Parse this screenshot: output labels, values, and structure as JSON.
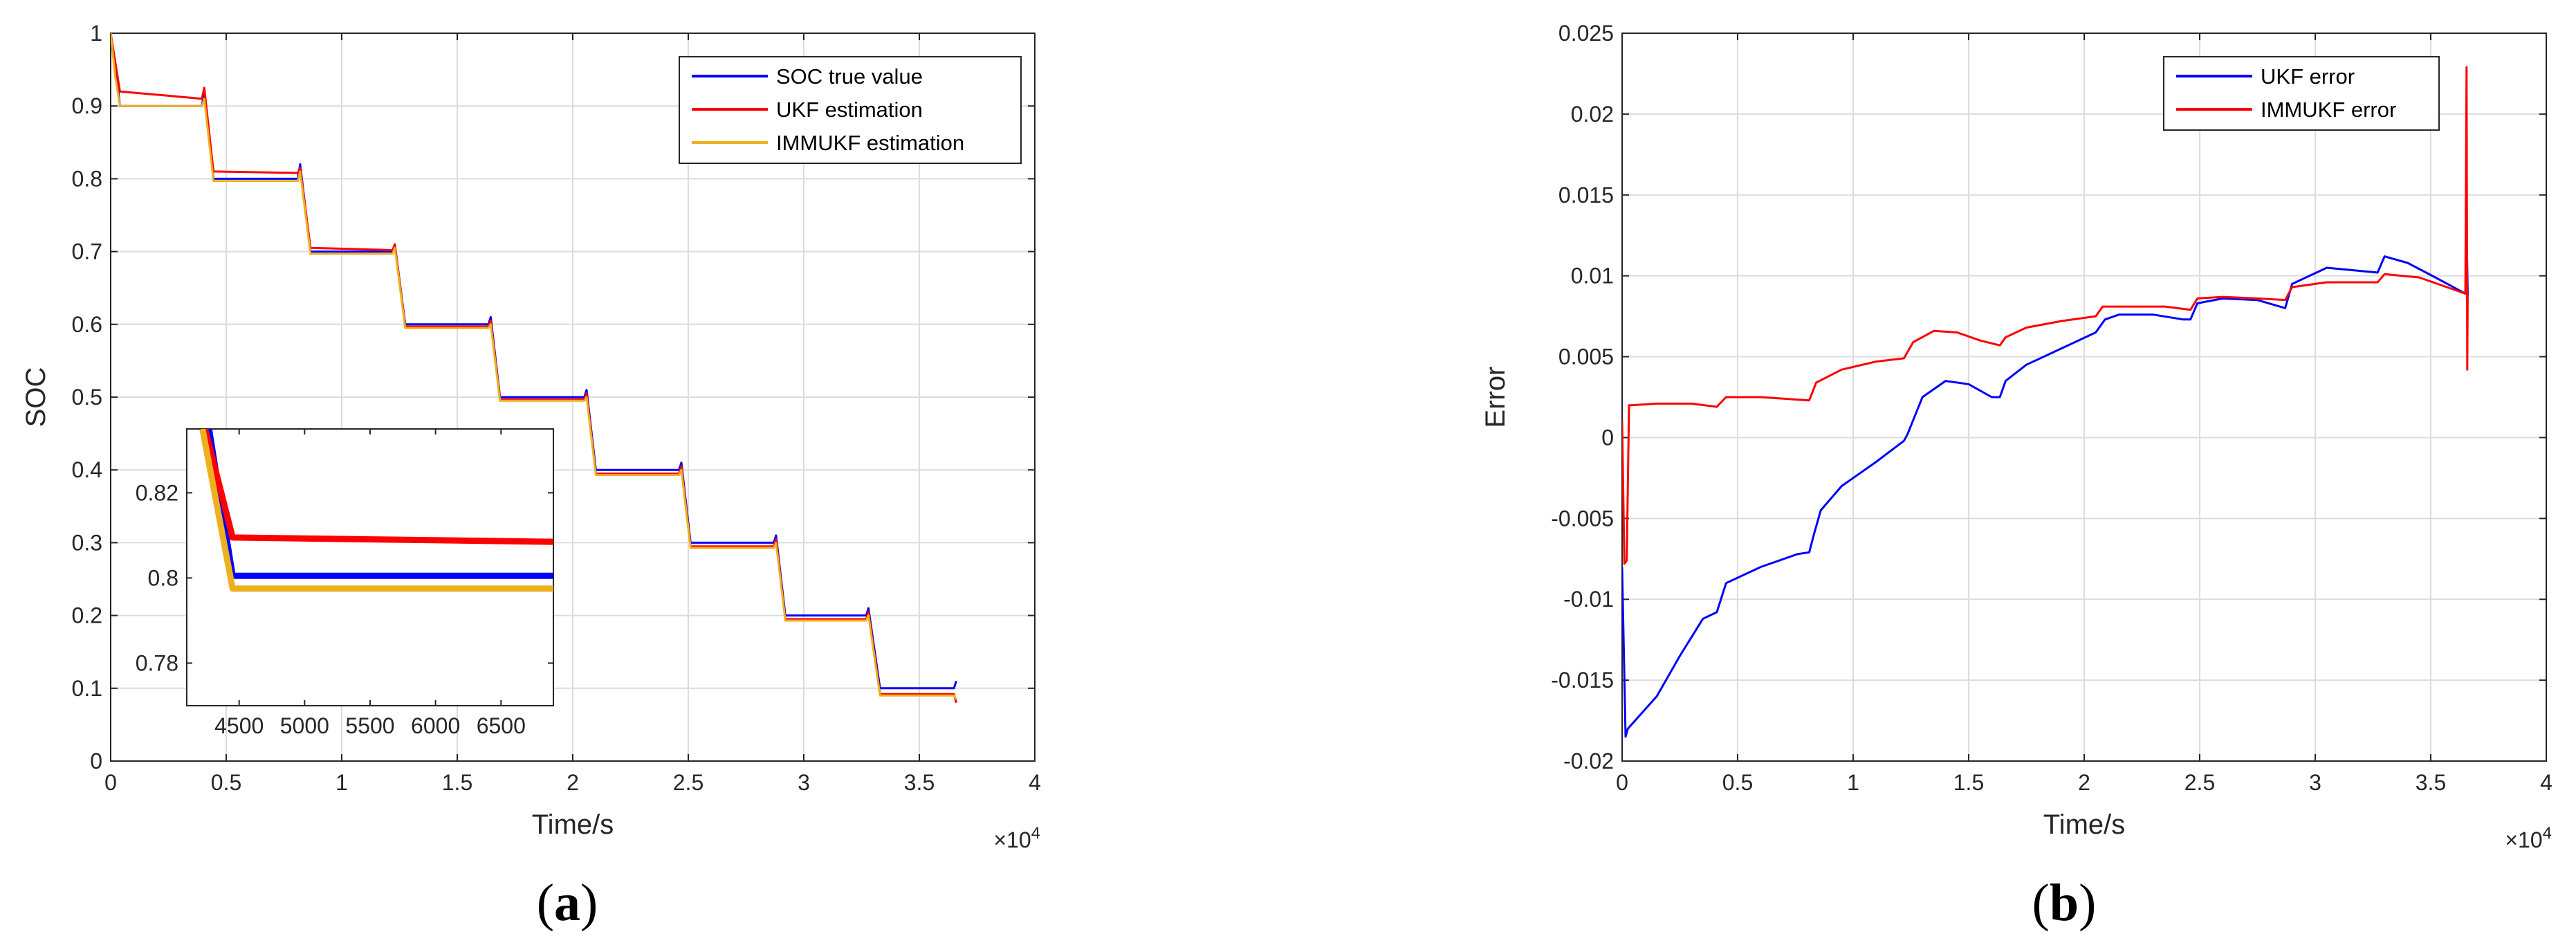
{
  "panels": [
    {
      "label_open": "(",
      "label_letter": "a",
      "label_close": ")"
    },
    {
      "label_open": "(",
      "label_letter": "b",
      "label_close": ")"
    }
  ],
  "chart_data": [
    {
      "type": "line",
      "xlabel": "Time/s",
      "ylabel": "SOC",
      "xlim": [
        0,
        40000
      ],
      "ylim": [
        0,
        1
      ],
      "x_ticks": [
        0,
        5000,
        10000,
        15000,
        20000,
        25000,
        30000,
        35000,
        40000
      ],
      "x_tick_labels": [
        "0",
        "0.5",
        "1",
        "1.5",
        "2",
        "2.5",
        "3",
        "3.5",
        "4"
      ],
      "x_exponent_base": "×10",
      "x_exponent_power": "4",
      "y_ticks": [
        0,
        0.1,
        0.2,
        0.3,
        0.4,
        0.5,
        0.6,
        0.7,
        0.8,
        0.9,
        1
      ],
      "y_tick_labels": [
        "0",
        "0.1",
        "0.2",
        "0.3",
        "0.4",
        "0.5",
        "0.6",
        "0.7",
        "0.8",
        "0.9",
        "1"
      ],
      "grid": true,
      "legend_position": "top-right",
      "series": [
        {
          "name": "SOC true value",
          "color": "#0000ff",
          "x": [
            0,
            300,
            400,
            3950,
            4050,
            4450,
            8100,
            8200,
            8650,
            12200,
            12300,
            12750,
            16350,
            16450,
            16850,
            20500,
            20600,
            21000,
            24600,
            24700,
            25100,
            28700,
            28800,
            29200,
            32700,
            32800,
            33300,
            36500,
            36600
          ],
          "y": [
            1.0,
            0.93,
            0.9,
            0.9,
            0.92,
            0.8,
            0.8,
            0.82,
            0.7,
            0.7,
            0.71,
            0.6,
            0.6,
            0.61,
            0.5,
            0.5,
            0.51,
            0.4,
            0.4,
            0.41,
            0.3,
            0.3,
            0.31,
            0.2,
            0.2,
            0.21,
            0.1,
            0.1,
            0.11
          ]
        },
        {
          "name": "UKF estimation",
          "color": "#ff0000",
          "x": [
            0,
            200,
            400,
            3950,
            4050,
            4450,
            8100,
            8200,
            8650,
            12200,
            12300,
            12750,
            16350,
            16450,
            16850,
            20500,
            20600,
            21000,
            24600,
            24700,
            25100,
            28700,
            28800,
            29200,
            32700,
            32800,
            33300,
            36500,
            36600
          ],
          "y": [
            1.0,
            0.96,
            0.92,
            0.91,
            0.925,
            0.81,
            0.808,
            0.815,
            0.705,
            0.702,
            0.71,
            0.597,
            0.597,
            0.605,
            0.497,
            0.497,
            0.505,
            0.395,
            0.395,
            0.405,
            0.295,
            0.295,
            0.305,
            0.195,
            0.195,
            0.205,
            0.092,
            0.092,
            0.08
          ]
        },
        {
          "name": "IMMUKF estimation",
          "color": "#edb120",
          "x": [
            0,
            200,
            400,
            3950,
            4050,
            4450,
            8100,
            8200,
            8650,
            12200,
            12300,
            12750,
            16350,
            16450,
            16850,
            20500,
            20600,
            21000,
            24600,
            24700,
            25100,
            28700,
            28800,
            29200,
            32700,
            32800,
            33300,
            36500,
            36600
          ],
          "y": [
            1.0,
            0.94,
            0.9,
            0.9,
            0.91,
            0.797,
            0.797,
            0.81,
            0.697,
            0.697,
            0.705,
            0.595,
            0.595,
            0.6,
            0.495,
            0.495,
            0.5,
            0.393,
            0.393,
            0.4,
            0.293,
            0.293,
            0.3,
            0.193,
            0.193,
            0.2,
            0.09,
            0.09,
            0.085
          ]
        }
      ],
      "inset": {
        "xlim": [
          4100,
          6900
        ],
        "ylim": [
          0.77,
          0.835
        ],
        "x_ticks": [
          4500,
          5000,
          5500,
          6000,
          6500
        ],
        "x_tick_labels": [
          "4500",
          "5000",
          "5500",
          "6000",
          "6500"
        ],
        "y_ticks": [
          0.78,
          0.8,
          0.82
        ],
        "y_tick_labels": [
          "0.78",
          "0.8",
          "0.82"
        ],
        "series": [
          {
            "color": "#0000ff",
            "x": [
              4270,
              4450,
              6900
            ],
            "y": [
              0.835,
              0.8005,
              0.8005
            ]
          },
          {
            "color": "#ff0000",
            "x": [
              4240,
              4450,
              6900
            ],
            "y": [
              0.835,
              0.8095,
              0.8085
            ]
          },
          {
            "color": "#edb120",
            "x": [
              4220,
              4450,
              6900
            ],
            "y": [
              0.835,
              0.7975,
              0.7975
            ]
          }
        ]
      }
    },
    {
      "type": "line",
      "xlabel": "Time/s",
      "ylabel": "Error",
      "xlim": [
        0,
        40000
      ],
      "ylim": [
        -0.02,
        0.025
      ],
      "x_ticks": [
        0,
        5000,
        10000,
        15000,
        20000,
        25000,
        30000,
        35000,
        40000
      ],
      "x_tick_labels": [
        "0",
        "0.5",
        "1",
        "1.5",
        "2",
        "2.5",
        "3",
        "3.5",
        "4"
      ],
      "x_exponent_base": "×10",
      "x_exponent_power": "4",
      "y_ticks": [
        -0.02,
        -0.015,
        -0.01,
        -0.005,
        0,
        0.005,
        0.01,
        0.015,
        0.02,
        0.025
      ],
      "y_tick_labels": [
        "-0.02",
        "-0.015",
        "-0.01",
        "-0.005",
        "0",
        "0.005",
        "0.01",
        "0.015",
        "0.02",
        "0.025"
      ],
      "grid": true,
      "legend_position": "top-right",
      "series": [
        {
          "name": "UKF error",
          "color": "#0000ff",
          "x": [
            0,
            150,
            250,
            1500,
            2500,
            3500,
            4100,
            4500,
            6000,
            7600,
            8100,
            8300,
            8600,
            9500,
            11000,
            12200,
            12350,
            13000,
            14000,
            15000,
            16000,
            16350,
            16600,
            17500,
            19000,
            20500,
            20900,
            21500,
            23000,
            24300,
            24600,
            24900,
            26000,
            27500,
            28700,
            29000,
            30500,
            32000,
            32700,
            33000,
            34000,
            35200,
            36500,
            36550,
            36600
          ],
          "y": [
            -0.008,
            -0.0185,
            -0.018,
            -0.016,
            -0.0135,
            -0.0112,
            -0.0108,
            -0.009,
            -0.008,
            -0.0072,
            -0.0071,
            -0.006,
            -0.0045,
            -0.003,
            -0.0015,
            -0.0002,
            0.0002,
            0.0025,
            0.0035,
            0.0033,
            0.0025,
            0.0025,
            0.0035,
            0.0045,
            0.0055,
            0.0065,
            0.0073,
            0.0076,
            0.0076,
            0.0073,
            0.0073,
            0.0083,
            0.0086,
            0.0085,
            0.008,
            0.0095,
            0.0105,
            0.0103,
            0.0102,
            0.0112,
            0.0108,
            0.0099,
            0.0089,
            0.0131,
            0.0088
          ]
        },
        {
          "name": "IMMUKF error",
          "color": "#ff0000",
          "x": [
            0,
            100,
            200,
            300,
            400,
            1500,
            3000,
            4100,
            4500,
            6000,
            8100,
            8400,
            9500,
            11000,
            12200,
            12600,
            13500,
            14500,
            15500,
            16350,
            16600,
            17500,
            19000,
            20500,
            20800,
            22000,
            23500,
            24600,
            24900,
            26000,
            27500,
            28700,
            29000,
            30500,
            32000,
            32700,
            33000,
            34500,
            36500,
            36550,
            36580,
            36600
          ],
          "y": [
            0.001,
            -0.0078,
            -0.0076,
            0.002,
            0.002,
            0.0021,
            0.0021,
            0.0019,
            0.0025,
            0.0025,
            0.0023,
            0.0034,
            0.0042,
            0.0047,
            0.0049,
            0.0059,
            0.0066,
            0.0065,
            0.006,
            0.0057,
            0.0062,
            0.0068,
            0.0072,
            0.0075,
            0.0081,
            0.0081,
            0.0081,
            0.0079,
            0.0086,
            0.0087,
            0.0086,
            0.0085,
            0.0093,
            0.0096,
            0.0096,
            0.0096,
            0.0101,
            0.0099,
            0.0089,
            0.0229,
            0.0042,
            0.0088
          ]
        }
      ]
    }
  ]
}
